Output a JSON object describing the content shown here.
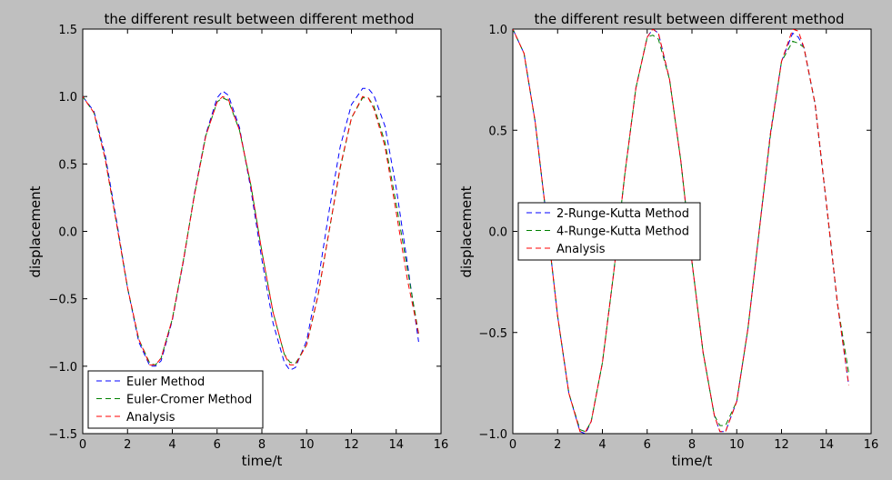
{
  "figure": {
    "background": "#bfbfbf"
  },
  "chart_data": [
    {
      "type": "line",
      "title": "the different result between different method",
      "xlabel": "time/t",
      "ylabel": "displacement",
      "xlim": [
        0,
        16
      ],
      "ylim": [
        -1.5,
        1.5
      ],
      "xticks": [
        "0",
        "2",
        "4",
        "6",
        "8",
        "10",
        "12",
        "14",
        "16"
      ],
      "yticks": [
        "−1.5",
        "−1.0",
        "−0.5",
        "0.0",
        "0.5",
        "1.0",
        "1.5"
      ],
      "grid": false,
      "legend_position": "lower-left",
      "line_style": "dashed",
      "series": [
        {
          "name": "Euler Method",
          "color": "#0000ff",
          "x": [
            0,
            0.5,
            1,
            1.5,
            2,
            2.5,
            3,
            3.25,
            3.5,
            4,
            4.5,
            5,
            5.5,
            6,
            6.25,
            6.5,
            7,
            7.5,
            8,
            8.5,
            9,
            9.25,
            9.5,
            10,
            10.5,
            11,
            11.5,
            12,
            12.5,
            12.75,
            13,
            13.5,
            14,
            14.5,
            15
          ],
          "y": [
            1.0,
            0.89,
            0.57,
            0.09,
            -0.42,
            -0.82,
            -1.0,
            -1.0,
            -0.96,
            -0.66,
            -0.22,
            0.29,
            0.72,
            0.99,
            1.04,
            1.01,
            0.77,
            0.32,
            -0.21,
            -0.68,
            -0.97,
            -1.03,
            -1.01,
            -0.81,
            -0.38,
            0.15,
            0.63,
            0.94,
            1.06,
            1.06,
            1.01,
            0.78,
            0.32,
            -0.24,
            -0.82
          ]
        },
        {
          "name": "Euler-Cromer Method",
          "color": "#008000",
          "x": [
            0,
            0.5,
            1,
            1.5,
            2,
            2.5,
            3,
            3.25,
            3.5,
            4,
            4.5,
            5,
            5.5,
            6,
            6.25,
            6.5,
            7,
            7.5,
            8,
            8.5,
            9,
            9.25,
            9.5,
            10,
            10.5,
            11,
            11.5,
            12,
            12.5,
            12.75,
            13,
            13.5,
            14,
            14.5,
            15
          ],
          "y": [
            1.0,
            0.88,
            0.54,
            0.07,
            -0.42,
            -0.8,
            -0.98,
            -0.99,
            -0.94,
            -0.65,
            -0.21,
            0.28,
            0.71,
            0.96,
            0.99,
            0.97,
            0.75,
            0.35,
            -0.15,
            -0.6,
            -0.91,
            -0.97,
            -0.98,
            -0.84,
            -0.48,
            0.0,
            0.47,
            0.84,
            0.99,
            0.99,
            0.93,
            0.66,
            0.2,
            -0.28,
            -0.76
          ]
        },
        {
          "name": "Analysis",
          "color": "#ff0000",
          "x": [
            0,
            0.5,
            1,
            1.5,
            2,
            2.5,
            3,
            3.25,
            3.5,
            4,
            4.5,
            5,
            5.5,
            6,
            6.25,
            6.5,
            7,
            7.5,
            8,
            8.5,
            9,
            9.25,
            9.5,
            10,
            10.5,
            11,
            11.5,
            12,
            12.5,
            12.75,
            13,
            13.5,
            14,
            14.5,
            15
          ],
          "y": [
            1.0,
            0.88,
            0.54,
            0.07,
            -0.42,
            -0.8,
            -0.99,
            -0.99,
            -0.94,
            -0.65,
            -0.21,
            0.28,
            0.71,
            0.96,
            1.0,
            0.98,
            0.75,
            0.35,
            -0.15,
            -0.6,
            -0.91,
            -0.99,
            -0.99,
            -0.84,
            -0.48,
            0.0,
            0.48,
            0.84,
            1.0,
            0.99,
            0.91,
            0.63,
            0.14,
            -0.36,
            -0.76
          ]
        }
      ]
    },
    {
      "type": "line",
      "title": "the different result between different method",
      "xlabel": "time/t",
      "ylabel": "displacement",
      "xlim": [
        0,
        16
      ],
      "ylim": [
        -1.0,
        1.0
      ],
      "xticks": [
        "0",
        "2",
        "4",
        "6",
        "8",
        "10",
        "12",
        "14",
        "16"
      ],
      "yticks": [
        "−1.0",
        "−0.5",
        "0.0",
        "0.5",
        "1.0"
      ],
      "grid": false,
      "legend_position": "center-left",
      "line_style": "dashed",
      "series": [
        {
          "name": "2-Runge-Kutta Method",
          "color": "#0000ff",
          "x": [
            0,
            0.5,
            1,
            1.5,
            2,
            2.5,
            3,
            3.25,
            3.5,
            4,
            4.5,
            5,
            5.5,
            6,
            6.25,
            6.5,
            7,
            7.5,
            8,
            8.5,
            9,
            9.25,
            9.5,
            10,
            10.5,
            11,
            11.5,
            12,
            12.5,
            12.75,
            13,
            13.5,
            14,
            14.5,
            15
          ],
          "y": [
            1.0,
            0.88,
            0.54,
            0.07,
            -0.42,
            -0.8,
            -0.99,
            -1.0,
            -0.94,
            -0.65,
            -0.21,
            0.28,
            0.71,
            0.96,
            1.0,
            0.98,
            0.75,
            0.35,
            -0.15,
            -0.6,
            -0.91,
            -0.99,
            -0.99,
            -0.84,
            -0.48,
            0.0,
            0.48,
            0.84,
            0.98,
            0.96,
            0.91,
            0.63,
            0.14,
            -0.36,
            -0.76
          ]
        },
        {
          "name": "4-Runge-Kutta Method",
          "color": "#008000",
          "x": [
            0,
            0.5,
            1,
            1.5,
            2,
            2.5,
            3,
            3.25,
            3.5,
            4,
            4.5,
            5,
            5.5,
            6,
            6.25,
            6.5,
            7,
            7.5,
            8,
            8.5,
            9,
            9.25,
            9.5,
            10,
            10.5,
            11,
            11.5,
            12,
            12.5,
            12.75,
            13,
            13.5,
            14,
            14.5,
            15
          ],
          "y": [
            1.0,
            0.88,
            0.54,
            0.07,
            -0.42,
            -0.8,
            -0.98,
            -0.99,
            -0.94,
            -0.65,
            -0.21,
            0.28,
            0.71,
            0.96,
            0.97,
            0.95,
            0.75,
            0.35,
            -0.15,
            -0.6,
            -0.91,
            -0.96,
            -0.96,
            -0.84,
            -0.48,
            0.0,
            0.47,
            0.84,
            0.94,
            0.93,
            0.91,
            0.63,
            0.14,
            -0.36,
            -0.7
          ]
        },
        {
          "name": "Analysis",
          "color": "#ff0000",
          "x": [
            0,
            0.5,
            1,
            1.5,
            2,
            2.5,
            3,
            3.25,
            3.5,
            4,
            4.5,
            5,
            5.5,
            6,
            6.25,
            6.5,
            7,
            7.5,
            8,
            8.5,
            9,
            9.25,
            9.5,
            10,
            10.5,
            11,
            11.5,
            12,
            12.5,
            12.75,
            13,
            13.5,
            14,
            14.5,
            15
          ],
          "y": [
            1.0,
            0.88,
            0.54,
            0.07,
            -0.42,
            -0.8,
            -0.99,
            -0.99,
            -0.94,
            -0.65,
            -0.21,
            0.28,
            0.71,
            0.96,
            1.0,
            0.98,
            0.75,
            0.35,
            -0.15,
            -0.6,
            -0.91,
            -0.99,
            -0.99,
            -0.84,
            -0.48,
            0.0,
            0.48,
            0.84,
            1.0,
            0.99,
            0.91,
            0.63,
            0.14,
            -0.36,
            -0.76
          ]
        }
      ]
    }
  ]
}
